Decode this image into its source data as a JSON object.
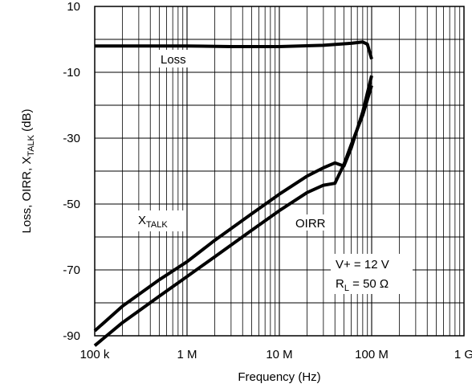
{
  "chart_data": {
    "type": "line",
    "title": "",
    "xlabel": "Frequency (Hz)",
    "ylabel_parts": [
      "Loss, OIRR, X",
      "TALK",
      " (dB)"
    ],
    "x_scale": "log",
    "xlim": [
      100000,
      1000000000
    ],
    "ylim": [
      -90,
      10
    ],
    "grid": true,
    "x_ticks": [
      {
        "value": 100000,
        "label": "100 k"
      },
      {
        "value": 1000000,
        "label": "1 M"
      },
      {
        "value": 10000000,
        "label": "10 M"
      },
      {
        "value": 100000000,
        "label": "100 M"
      },
      {
        "value": 1000000000,
        "label": "1 G"
      }
    ],
    "y_ticks": [
      {
        "value": 10,
        "label": "10"
      },
      {
        "value": -10,
        "label": "-10"
      },
      {
        "value": -30,
        "label": "-30"
      },
      {
        "value": -50,
        "label": "-50"
      },
      {
        "value": -70,
        "label": "-70"
      },
      {
        "value": -90,
        "label": "-90"
      }
    ],
    "series": [
      {
        "name": "Loss",
        "x": [
          100000,
          1000000,
          3000000,
          10000000,
          30000000,
          60000000,
          80000000,
          90000000,
          100000000
        ],
        "y": [
          -2,
          -2,
          -2.2,
          -2.2,
          -1.8,
          -1.2,
          -0.8,
          -1.5,
          -6
        ]
      },
      {
        "name": "XTALK",
        "x": [
          100000,
          200000,
          500000,
          1000000,
          2000000,
          5000000,
          10000000,
          20000000,
          30000000,
          40000000,
          50000000,
          60000000,
          80000000,
          100000000
        ],
        "y": [
          -88.5,
          -81,
          -73,
          -67.5,
          -61,
          -53,
          -47,
          -41.5,
          -39,
          -37.5,
          -38.5,
          -33,
          -22,
          -11
        ]
      },
      {
        "name": "OIRR",
        "x": [
          100000,
          200000,
          500000,
          1000000,
          2000000,
          5000000,
          10000000,
          20000000,
          30000000,
          40000000,
          50000000,
          60000000,
          80000000,
          100000000
        ],
        "y": [
          -93,
          -86,
          -78,
          -72,
          -66,
          -58,
          -52,
          -46.5,
          -44.3,
          -43.7,
          -38,
          -32,
          -23,
          -14
        ]
      }
    ],
    "labels": {
      "loss": "Loss",
      "xtalk_main": "X",
      "xtalk_sub": "TALK",
      "oirr": "OIRR",
      "cond_voltage": "V+ = 12 V",
      "cond_load_main": "R",
      "cond_load_sub": "L",
      "cond_load_rest": " = 50 Ω"
    }
  }
}
